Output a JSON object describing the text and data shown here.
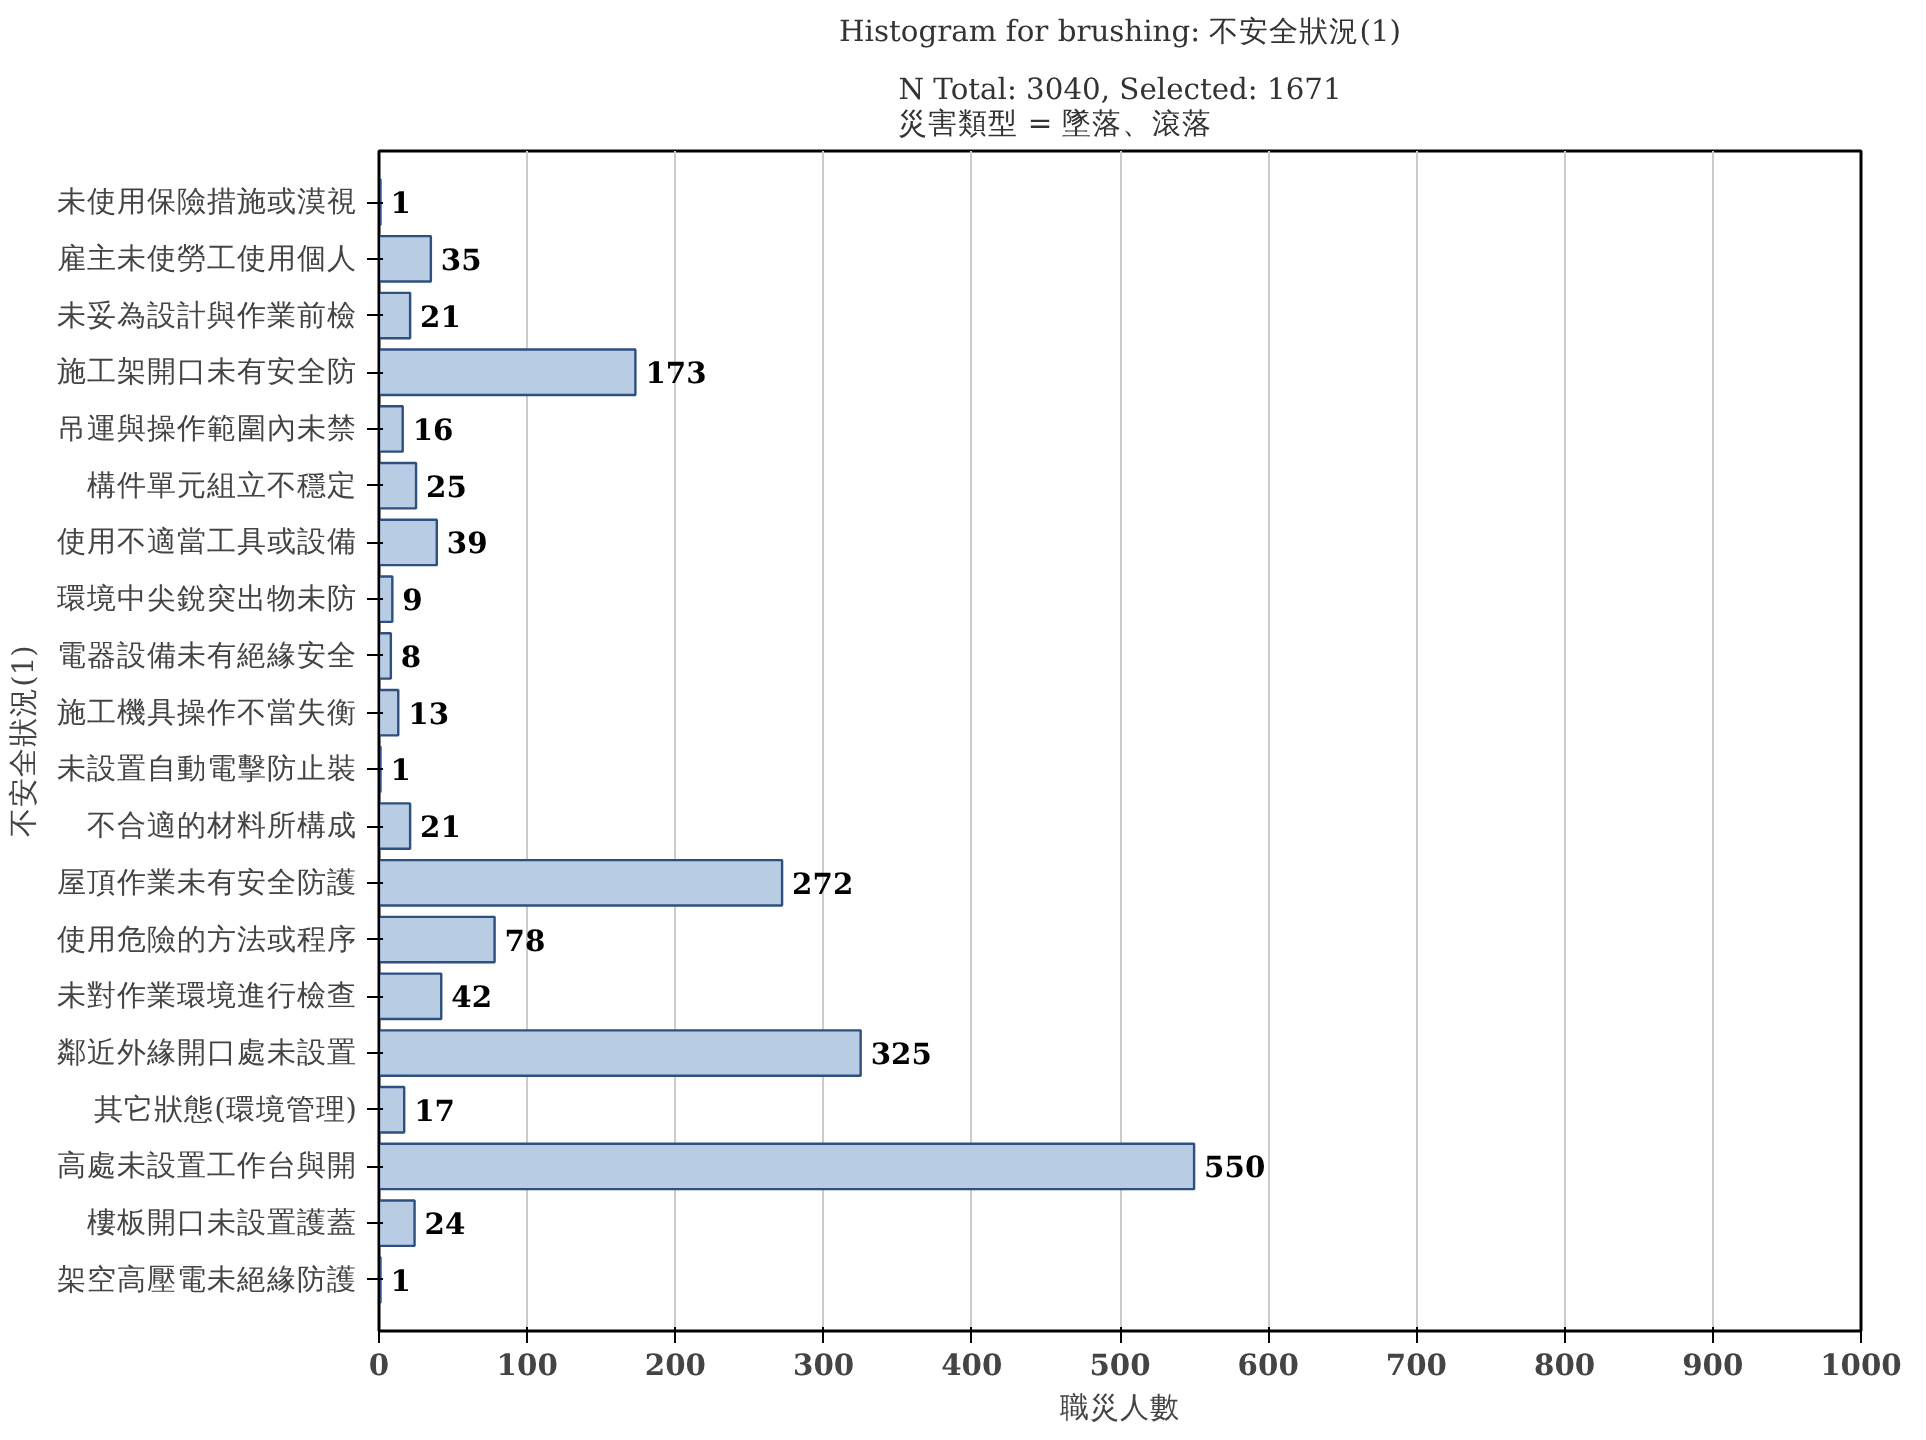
{
  "chart_data": {
    "type": "bar",
    "orientation": "horizontal",
    "title": "Histogram for brushing: 不安全狀況(1)",
    "subtitle": "N Total: 3040, Selected: 1671\n災害類型 = 墜落、滾落",
    "xlabel": "職災人數",
    "ylabel": "不安全狀況(1)",
    "categories": [
      "未使用保險措施或漠視",
      "雇主未使勞工使用個人",
      "未妥為設計與作業前檢",
      "施工架開口未有安全防",
      "吊運與操作範圍內未禁",
      "構件單元組立不穩定",
      "使用不適當工具或設備",
      "環境中尖銳突出物未防",
      "電器設備未有絕緣安全",
      "施工機具操作不當失衡",
      "未設置自動電擊防止裝",
      "不合適的材料所構成",
      "屋頂作業未有安全防護",
      "使用危險的方法或程序",
      "未對作業環境進行檢查",
      "鄰近外緣開口處未設置",
      "其它狀態(環境管理)",
      "高處未設置工作台與開",
      "樓板開口未設置護蓋",
      "架空高壓電未絕緣防護"
    ],
    "values": [
      1,
      35,
      21,
      173,
      16,
      25,
      39,
      9,
      8,
      13,
      1,
      21,
      272,
      78,
      42,
      325,
      17,
      550,
      24,
      1
    ],
    "color": "#b8cce4",
    "xlim": [
      0,
      1000
    ],
    "xticks": [
      0,
      100,
      200,
      300,
      400,
      500,
      600,
      700,
      800,
      900,
      1000
    ],
    "grid": "x",
    "data_labels": true
  }
}
